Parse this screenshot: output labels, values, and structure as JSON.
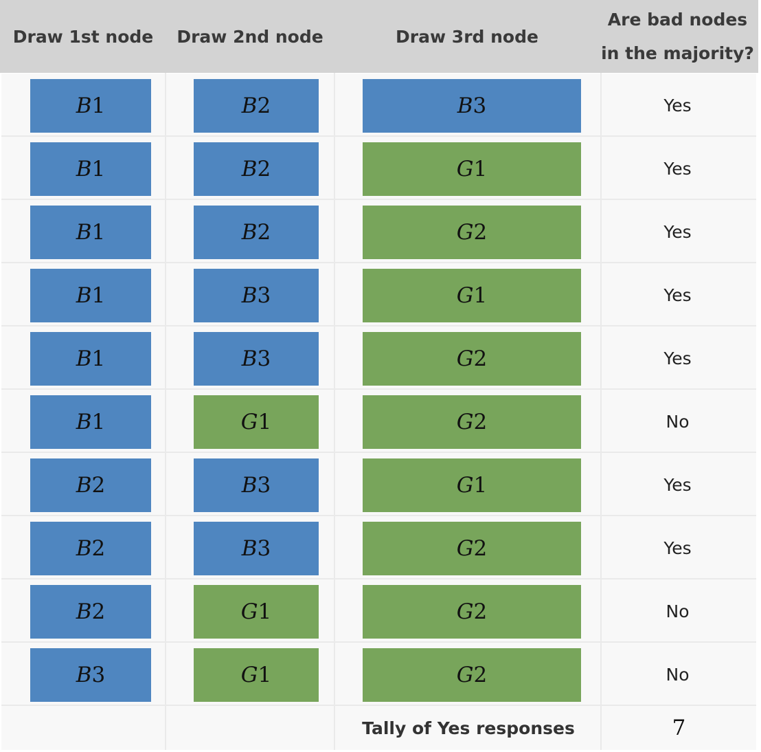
{
  "colors": {
    "bad": "#4f86c0",
    "good": "#78a55b",
    "header_bg": "#d3d3d3",
    "row_bg": "#f8f8f8"
  },
  "header": {
    "col1": "Draw 1st node",
    "col2": "Draw 2nd node",
    "col3": "Draw 3rd node",
    "col4_line1": "Are bad nodes",
    "col4_line2": "in the majority?"
  },
  "rows": [
    {
      "n1": {
        "letter": "B",
        "num": "1"
      },
      "n2": {
        "letter": "B",
        "num": "2"
      },
      "n3": {
        "letter": "B",
        "num": "3"
      },
      "answer": "Yes"
    },
    {
      "n1": {
        "letter": "B",
        "num": "1"
      },
      "n2": {
        "letter": "B",
        "num": "2"
      },
      "n3": {
        "letter": "G",
        "num": "1"
      },
      "answer": "Yes"
    },
    {
      "n1": {
        "letter": "B",
        "num": "1"
      },
      "n2": {
        "letter": "B",
        "num": "2"
      },
      "n3": {
        "letter": "G",
        "num": "2"
      },
      "answer": "Yes"
    },
    {
      "n1": {
        "letter": "B",
        "num": "1"
      },
      "n2": {
        "letter": "B",
        "num": "3"
      },
      "n3": {
        "letter": "G",
        "num": "1"
      },
      "answer": "Yes"
    },
    {
      "n1": {
        "letter": "B",
        "num": "1"
      },
      "n2": {
        "letter": "B",
        "num": "3"
      },
      "n3": {
        "letter": "G",
        "num": "2"
      },
      "answer": "Yes"
    },
    {
      "n1": {
        "letter": "B",
        "num": "1"
      },
      "n2": {
        "letter": "G",
        "num": "1"
      },
      "n3": {
        "letter": "G",
        "num": "2"
      },
      "answer": "No"
    },
    {
      "n1": {
        "letter": "B",
        "num": "2"
      },
      "n2": {
        "letter": "B",
        "num": "3"
      },
      "n3": {
        "letter": "G",
        "num": "1"
      },
      "answer": "Yes"
    },
    {
      "n1": {
        "letter": "B",
        "num": "2"
      },
      "n2": {
        "letter": "B",
        "num": "3"
      },
      "n3": {
        "letter": "G",
        "num": "2"
      },
      "answer": "Yes"
    },
    {
      "n1": {
        "letter": "B",
        "num": "2"
      },
      "n2": {
        "letter": "G",
        "num": "1"
      },
      "n3": {
        "letter": "G",
        "num": "2"
      },
      "answer": "No"
    },
    {
      "n1": {
        "letter": "B",
        "num": "3"
      },
      "n2": {
        "letter": "G",
        "num": "1"
      },
      "n3": {
        "letter": "G",
        "num": "2"
      },
      "answer": "No"
    }
  ],
  "tally": {
    "label": "Tally of Yes responses",
    "value": "7"
  }
}
